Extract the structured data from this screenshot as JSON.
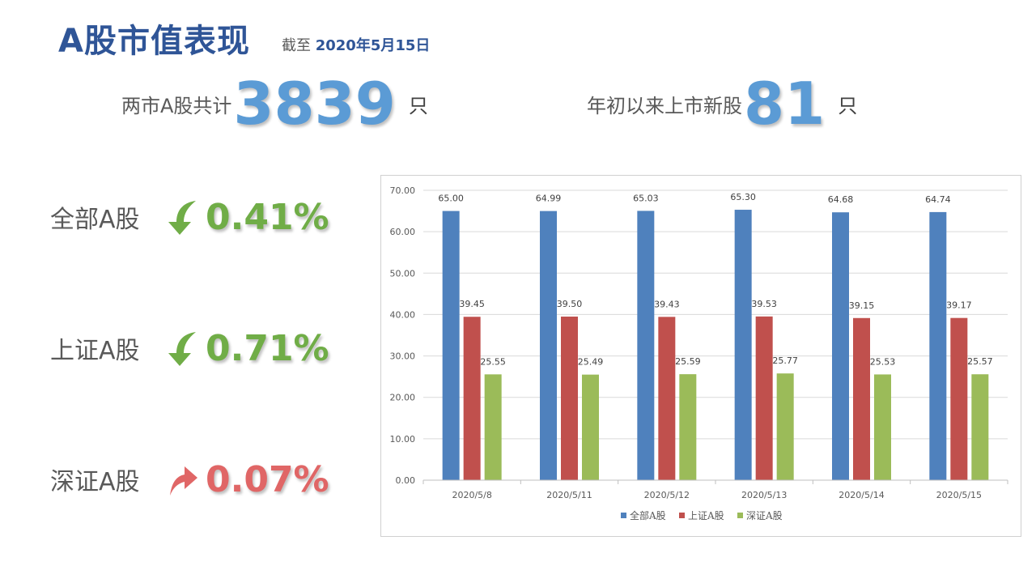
{
  "header": {
    "title": "A股市值表现",
    "subtitle_prefix": "截至",
    "subtitle_date": "2020年5月15日"
  },
  "stats": [
    {
      "label": "两市A股共计",
      "value": "3839",
      "unit": "只"
    },
    {
      "label": "年初以来上市新股",
      "value": "81",
      "unit": "只"
    }
  ],
  "indices": [
    {
      "name": "全部A股",
      "direction": "down",
      "change": "0.41%"
    },
    {
      "name": "上证A股",
      "direction": "down",
      "change": "0.71%"
    },
    {
      "name": "深证A股",
      "direction": "up",
      "change": "0.07%"
    }
  ],
  "colors": {
    "blue": "#4f81bd",
    "red": "#c0504d",
    "green": "#9bbb59",
    "down": "#70ad47",
    "up": "#e06666"
  },
  "chart_data": {
    "type": "bar",
    "categories": [
      "2020/5/8",
      "2020/5/11",
      "2020/5/12",
      "2020/5/13",
      "2020/5/14",
      "2020/5/15"
    ],
    "series": [
      {
        "name": "全部A股",
        "color": "#4f81bd",
        "values": [
          65.0,
          64.99,
          65.03,
          65.3,
          64.68,
          64.74
        ]
      },
      {
        "name": "上证A股",
        "color": "#c0504d",
        "values": [
          39.45,
          39.5,
          39.43,
          39.53,
          39.15,
          39.17
        ]
      },
      {
        "name": "深证A股",
        "color": "#9bbb59",
        "values": [
          25.55,
          25.49,
          25.59,
          25.77,
          25.53,
          25.57
        ]
      }
    ],
    "title": "",
    "xlabel": "",
    "ylabel": "",
    "ylim": [
      0,
      70
    ],
    "yticks": [
      "0.00",
      "10.00",
      "20.00",
      "30.00",
      "40.00",
      "50.00",
      "60.00",
      "70.00"
    ],
    "grid": true,
    "legend": "bottom"
  }
}
